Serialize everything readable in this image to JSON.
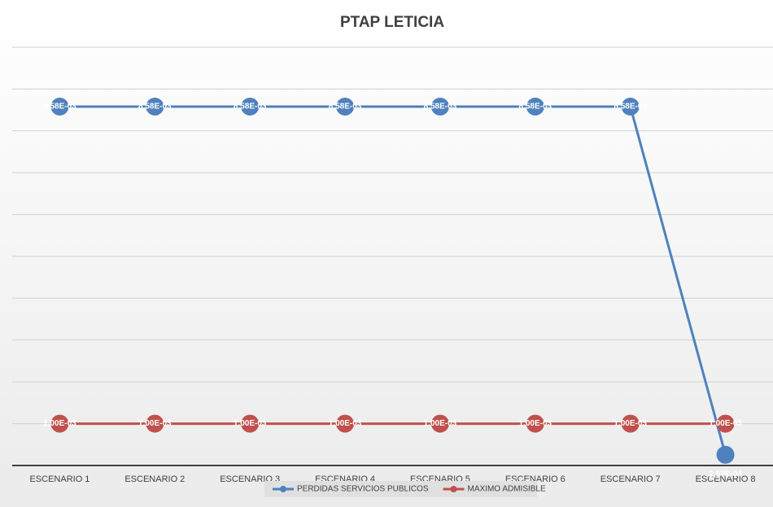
{
  "chart_data": {
    "type": "line",
    "title": "PTAP LETICIA",
    "categories": [
      "ESCENARIO 1",
      "ESCENARIO 2",
      "ESCENARIO 3",
      "ESCENARIO 4",
      "ESCENARIO 5",
      "ESCENARIO 6",
      "ESCENARIO 7",
      "ESCENARIO 8"
    ],
    "series": [
      {
        "name": "PERDIDAS SERVICIOS PUBLICOS",
        "color": "#4f81bd",
        "values": [
          0.00858,
          0.00858,
          0.00858,
          0.00858,
          0.00858,
          0.00858,
          0.00858,
          0.000257
        ],
        "value_labels": [
          "8,58E-03",
          "8,58E-03",
          "8,58E-03",
          "8,58E-03",
          "8,58E-03",
          "8,58E-03",
          "8,58E-03",
          "2,57E-04"
        ]
      },
      {
        "name": "MAXIMO ADMISIBLE",
        "color": "#c0504d",
        "values": [
          0.001,
          0.001,
          0.001,
          0.001,
          0.001,
          0.001,
          0.001,
          0.001
        ],
        "value_labels": [
          "1,00E-03",
          "1,00E-03",
          "1,00E-03",
          "1,00E-03",
          "1,00E-03",
          "1,00E-03",
          "1,00E-03",
          "1,00E-03"
        ]
      }
    ],
    "ylim": [
      0,
      0.01
    ],
    "yticks": [
      0,
      0.001,
      0.002,
      0.003,
      0.004,
      0.005,
      0.006,
      0.007,
      0.008,
      0.009,
      0.01
    ],
    "grid": true,
    "legend": "bottom"
  }
}
